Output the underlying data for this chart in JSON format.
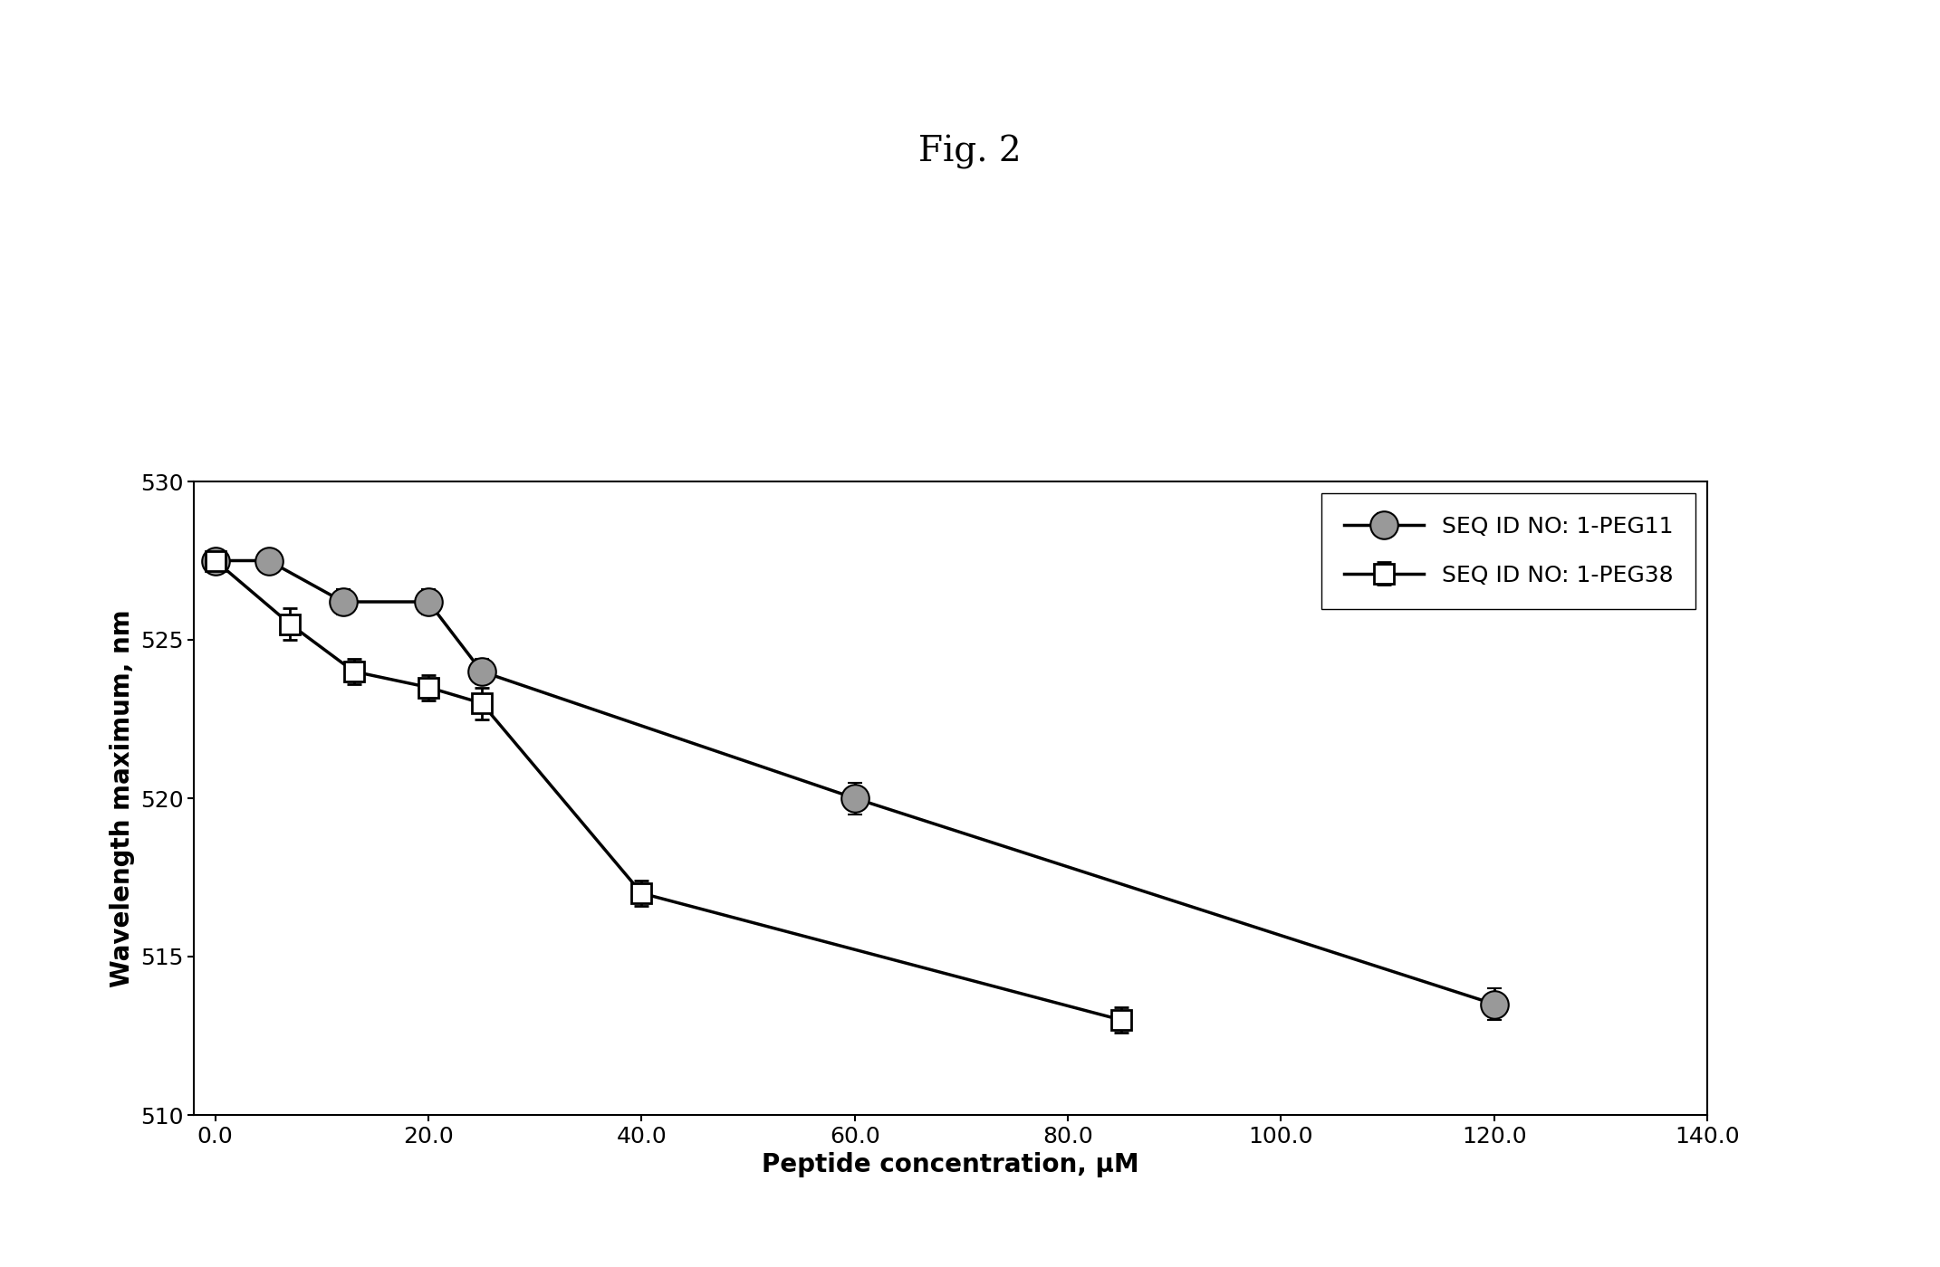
{
  "title": "Fig. 2",
  "xlabel": "Peptide concentration, μM",
  "ylabel": "Wavelength maximum, nm",
  "xlim": [
    -2,
    140
  ],
  "ylim": [
    510,
    530
  ],
  "xticks": [
    0.0,
    20.0,
    40.0,
    60.0,
    80.0,
    100.0,
    120.0,
    140.0
  ],
  "yticks": [
    510,
    515,
    520,
    525,
    530
  ],
  "series1_label": "SEQ ID NO: 1-PEG11",
  "series1_x": [
    0.0,
    5.0,
    12.0,
    20.0,
    25.0,
    60.0,
    120.0
  ],
  "series1_y": [
    527.5,
    527.5,
    526.2,
    526.2,
    524.0,
    520.0,
    513.5
  ],
  "series1_yerr": [
    0.3,
    0.3,
    0.4,
    0.4,
    0.4,
    0.5,
    0.5
  ],
  "series2_label": "SEQ ID NO: 1-PEG38",
  "series2_x": [
    0.0,
    7.0,
    13.0,
    20.0,
    25.0,
    40.0,
    85.0
  ],
  "series2_y": [
    527.5,
    525.5,
    524.0,
    523.5,
    523.0,
    517.0,
    513.0
  ],
  "series2_yerr": [
    0.3,
    0.5,
    0.4,
    0.4,
    0.5,
    0.4,
    0.4
  ],
  "background_color": "#ffffff",
  "line_color": "#000000",
  "title_fontsize": 28,
  "axis_label_fontsize": 20,
  "tick_fontsize": 18,
  "legend_fontsize": 18
}
